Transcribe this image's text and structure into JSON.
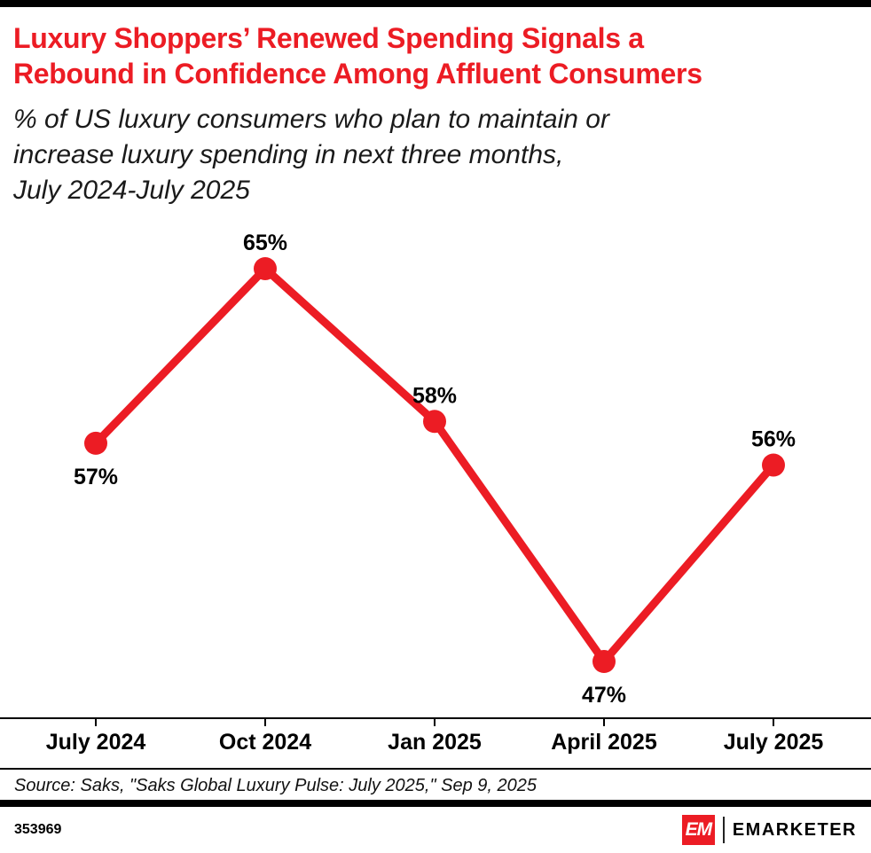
{
  "colors": {
    "accent_red": "#ec1c24",
    "bar_black": "#000000"
  },
  "header": {
    "title_lines": [
      "Luxury Shoppers’ Renewed Spending Signals a",
      "Rebound in Confidence Among Affluent Consumers"
    ],
    "subtitle_lines": [
      "% of US luxury consumers who plan to maintain or",
      "increase luxury spending in next three months,",
      "July 2024-July 2025"
    ]
  },
  "chart_data": {
    "type": "line",
    "title": "Luxury Shoppers’ Renewed Spending Signals a Rebound in Confidence Among Affluent Consumers",
    "subtitle": "% of US luxury consumers who plan to maintain or increase luxury spending in next three months, July 2024-July 2025",
    "categories": [
      "July 2024",
      "Oct 2024",
      "Jan 2025",
      "April 2025",
      "July 2025"
    ],
    "values": [
      57,
      65,
      58,
      47,
      56
    ],
    "point_labels": [
      "57%",
      "65%",
      "58%",
      "47%",
      "56%"
    ],
    "label_positions": [
      "below",
      "above",
      "above",
      "below",
      "above"
    ],
    "unit": "%",
    "ylim": [
      44,
      68
    ],
    "line_color": "#ec1c24",
    "grid": false,
    "legend": false,
    "y_axis_visible": false
  },
  "source": {
    "text": "Source: Saks, \"Saks Global Luxury Pulse: July 2025,\" Sep 9, 2025"
  },
  "footer": {
    "chart_number": "353969",
    "brand": {
      "mark_text": "EM",
      "name": "EMARKETER"
    }
  }
}
